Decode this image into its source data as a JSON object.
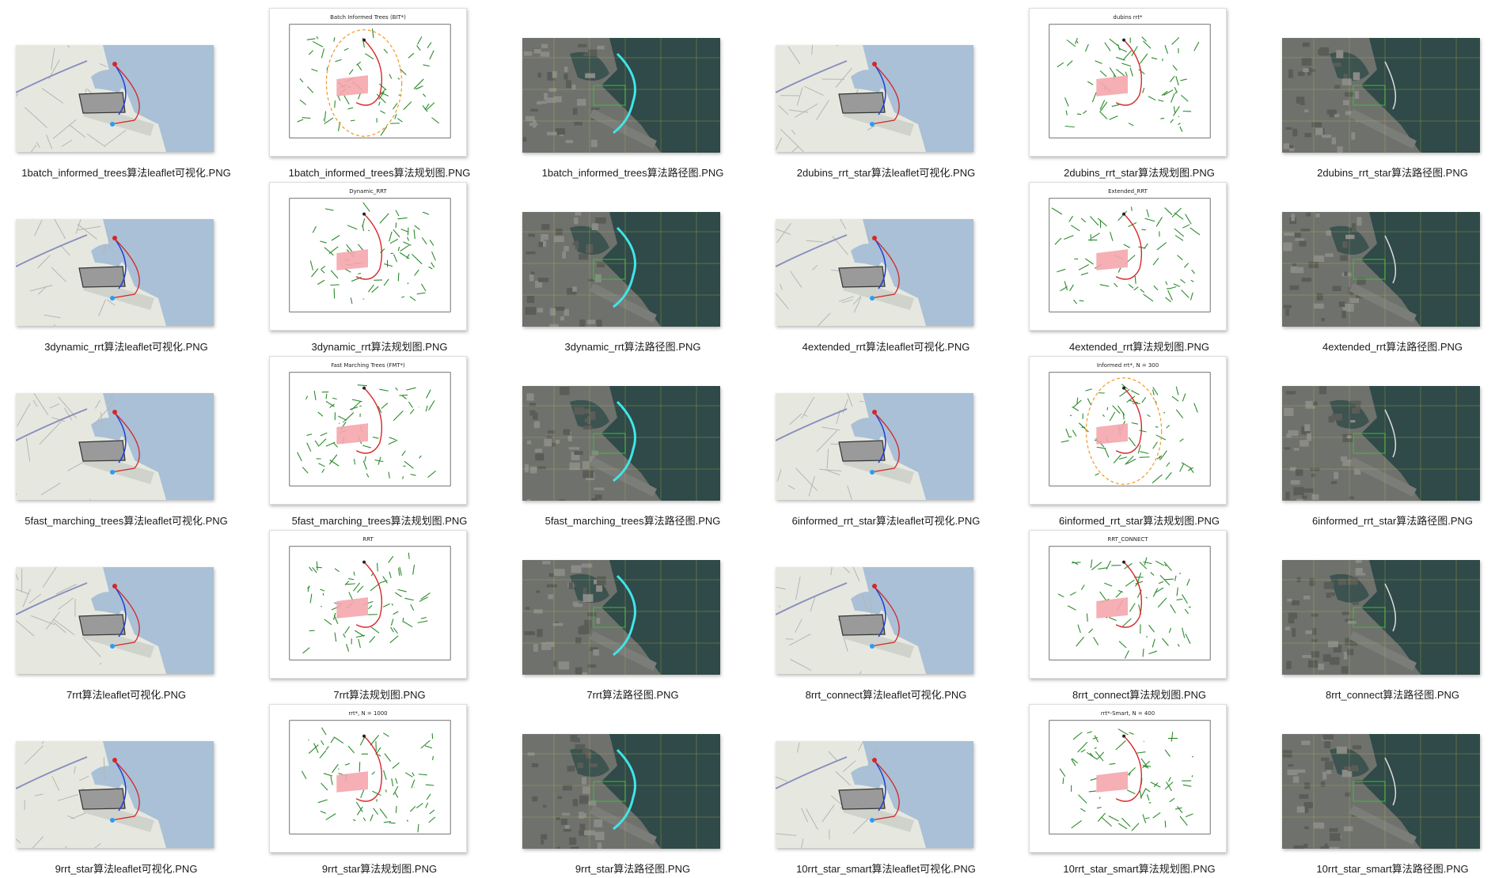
{
  "files": [
    {
      "name": "1batch_informed_trees算法leaflet可视化.PNG",
      "kind": "map",
      "plot_title": ""
    },
    {
      "name": "1batch_informed_trees算法规划图.PNG",
      "kind": "plot",
      "plot_title": "Batch Informed Trees (BIT*)"
    },
    {
      "name": "1batch_informed_trees算法路径图.PNG",
      "kind": "sat",
      "plot_title": ""
    },
    {
      "name": "2dubins_rrt_star算法leaflet可视化.PNG",
      "kind": "map",
      "plot_title": ""
    },
    {
      "name": "2dubins_rrt_star算法规划图.PNG",
      "kind": "plot",
      "plot_title": "dubins rrt*"
    },
    {
      "name": "2dubins_rrt_star算法路径图.PNG",
      "kind": "sat",
      "plot_title": ""
    },
    {
      "name": "3dynamic_rrt算法leaflet可视化.PNG",
      "kind": "map",
      "plot_title": ""
    },
    {
      "name": "3dynamic_rrt算法规划图.PNG",
      "kind": "plot",
      "plot_title": "Dynamic_RRT"
    },
    {
      "name": "3dynamic_rrt算法路径图.PNG",
      "kind": "sat",
      "plot_title": ""
    },
    {
      "name": "4extended_rrt算法leaflet可视化.PNG",
      "kind": "map",
      "plot_title": ""
    },
    {
      "name": "4extended_rrt算法规划图.PNG",
      "kind": "plot",
      "plot_title": "Extended_RRT"
    },
    {
      "name": "4extended_rrt算法路径图.PNG",
      "kind": "sat",
      "plot_title": ""
    },
    {
      "name": "5fast_marching_trees算法leaflet可视化.PNG",
      "kind": "map",
      "plot_title": ""
    },
    {
      "name": "5fast_marching_trees算法规划图.PNG",
      "kind": "plot",
      "plot_title": "Fast Marching Trees (FMT*)"
    },
    {
      "name": "5fast_marching_trees算法路径图.PNG",
      "kind": "sat",
      "plot_title": ""
    },
    {
      "name": "6informed_rrt_star算法leaflet可视化.PNG",
      "kind": "map",
      "plot_title": ""
    },
    {
      "name": "6informed_rrt_star算法规划图.PNG",
      "kind": "plot",
      "plot_title": "Informed rrt*, N = 300"
    },
    {
      "name": "6informed_rrt_star算法路径图.PNG",
      "kind": "sat",
      "plot_title": ""
    },
    {
      "name": "7rrt算法leaflet可视化.PNG",
      "kind": "map",
      "plot_title": ""
    },
    {
      "name": "7rrt算法规划图.PNG",
      "kind": "plot",
      "plot_title": "RRT"
    },
    {
      "name": "7rrt算法路径图.PNG",
      "kind": "sat",
      "plot_title": ""
    },
    {
      "name": "8rrt_connect算法leaflet可视化.PNG",
      "kind": "map",
      "plot_title": ""
    },
    {
      "name": "8rrt_connect算法规划图.PNG",
      "kind": "plot",
      "plot_title": "RRT_CONNECT"
    },
    {
      "name": "8rrt_connect算法路径图.PNG",
      "kind": "sat",
      "plot_title": ""
    },
    {
      "name": "9rrt_star算法leaflet可视化.PNG",
      "kind": "map",
      "plot_title": ""
    },
    {
      "name": "9rrt_star算法规划图.PNG",
      "kind": "plot",
      "plot_title": "rrt*, N = 1000"
    },
    {
      "name": "9rrt_star算法路径图.PNG",
      "kind": "sat",
      "plot_title": ""
    },
    {
      "name": "10rrt_star_smart算法leaflet可视化.PNG",
      "kind": "map",
      "plot_title": ""
    },
    {
      "name": "10rrt_star_smart算法规划图.PNG",
      "kind": "plot",
      "plot_title": "rrt*-Smart, N = 400"
    },
    {
      "name": "10rrt_star_smart算法路径图.PNG",
      "kind": "sat",
      "plot_title": ""
    }
  ],
  "colors": {
    "water": "#a9c0d6",
    "land": "#e6e8e0",
    "road": "#b5b5b5",
    "runway": "#cfd3cc",
    "route_red": "#d62728",
    "route_blue": "#1f3fd6",
    "tree_green": "#2a8a2a",
    "obstacle_pink": "#f4a6ad",
    "sat_water": "#2f4a48",
    "sat_land": "#6f716d",
    "cyan_path": "#3ee6ea",
    "ellipse_orange": "#f0a030"
  }
}
